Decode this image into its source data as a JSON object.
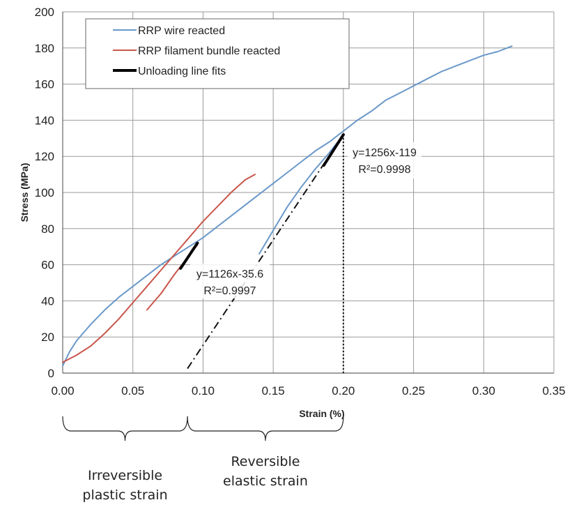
{
  "chart_data": {
    "type": "line",
    "xlabel": "Strain (%)",
    "ylabel": "Stress (MPa)",
    "xlim": [
      0,
      0.35
    ],
    "ylim": [
      0,
      200
    ],
    "x_ticks": [
      "0.00",
      "0.05",
      "0.10",
      "0.15",
      "0.20",
      "0.25",
      "0.30",
      "0.35"
    ],
    "y_ticks": [
      "0",
      "20",
      "40",
      "60",
      "80",
      "100",
      "120",
      "140",
      "160",
      "180",
      "200"
    ],
    "grid": true,
    "legend_position": "top-left",
    "series": [
      {
        "name": "RRP wire reacted",
        "color": "#6a98c9",
        "x": [
          0.0,
          0.005,
          0.01,
          0.02,
          0.03,
          0.04,
          0.05,
          0.06,
          0.07,
          0.08,
          0.09,
          0.1,
          0.11,
          0.12,
          0.13,
          0.14,
          0.15,
          0.16,
          0.17,
          0.18,
          0.19,
          0.2,
          0.21,
          0.22,
          0.23,
          0.24,
          0.25,
          0.26,
          0.27,
          0.28,
          0.29,
          0.3,
          0.31,
          0.32
        ],
        "y": [
          4,
          12,
          18,
          27,
          35,
          42,
          48,
          54,
          60,
          65,
          70,
          75,
          81,
          87,
          93,
          99,
          105,
          111,
          117,
          123,
          128,
          134,
          140,
          145,
          151,
          155,
          159,
          163,
          167,
          170,
          173,
          176,
          178,
          181
        ]
      },
      {
        "name": "RRP wire reacted",
        "color": "#6a98c9",
        "x": [
          0.14,
          0.15,
          0.16,
          0.17,
          0.18,
          0.19,
          0.2
        ],
        "y": [
          66,
          79,
          92,
          103,
          113,
          122,
          132
        ]
      },
      {
        "name": "RRP filament bundle reacted",
        "color": "#c9564a",
        "x": [
          0.0,
          0.01,
          0.02,
          0.03,
          0.04,
          0.05,
          0.06,
          0.07,
          0.08,
          0.09,
          0.1,
          0.11,
          0.12,
          0.13,
          0.137
        ],
        "y": [
          6,
          10,
          15,
          22,
          30,
          39,
          48,
          57,
          66,
          75,
          84,
          92,
          100,
          107,
          110
        ]
      },
      {
        "name": "RRP filament bundle reacted",
        "color": "#c9564a",
        "x": [
          0.06,
          0.07,
          0.08,
          0.09,
          0.096
        ],
        "y": [
          35,
          44,
          55,
          65,
          71
        ]
      },
      {
        "name": "Unloading line fits",
        "color": "#000000",
        "x": [
          0.084,
          0.096
        ],
        "y": [
          58,
          72
        ]
      },
      {
        "name": "Unloading line fits",
        "color": "#000000",
        "x": [
          0.186,
          0.2
        ],
        "y": [
          115,
          132
        ]
      }
    ],
    "fit_lines": [
      {
        "x": [
          0.0889,
          0.2
        ],
        "y": [
          2.5,
          132
        ],
        "style": "dash-dot"
      }
    ],
    "reference_lines": [
      {
        "x": 0.2,
        "y_range": [
          0,
          132
        ],
        "style": "dotted"
      }
    ],
    "annotations": [
      {
        "lines": [
          "y=1126x-35.6",
          "R²=0.9997"
        ]
      },
      {
        "lines": [
          "y=1256x-119",
          "R²=0.9998"
        ]
      }
    ],
    "braces": [
      {
        "x_range": [
          0.0,
          0.0889
        ],
        "label": [
          "Irreversible",
          "plastic strain"
        ]
      },
      {
        "x_range": [
          0.0889,
          0.2
        ],
        "label": [
          "Reversible",
          "elastic strain"
        ]
      }
    ]
  }
}
